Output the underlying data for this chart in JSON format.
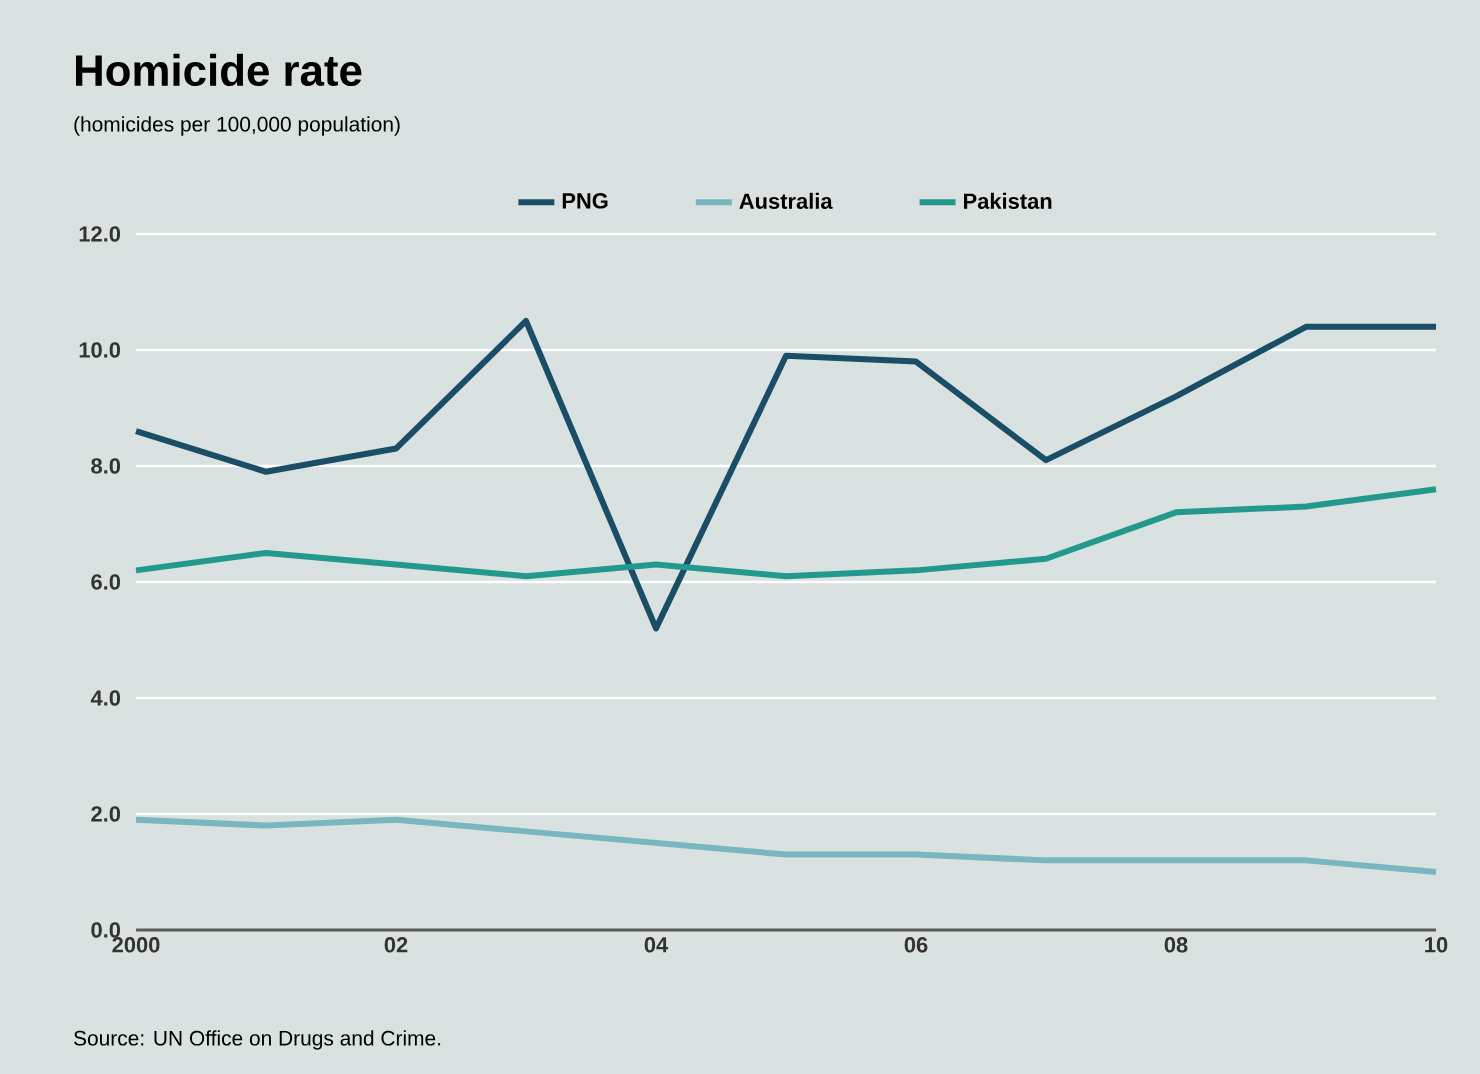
{
  "chart_data": {
    "type": "line",
    "title": "Homicide rate",
    "subtitle": "(homicides per 100,000 population)",
    "x": [
      2000,
      2001,
      2002,
      2003,
      2004,
      2005,
      2006,
      2007,
      2008,
      2009,
      2010
    ],
    "series": [
      {
        "name": "PNG",
        "color": "#1a4e66",
        "values": [
          8.6,
          7.9,
          8.3,
          10.5,
          5.2,
          9.9,
          9.8,
          8.1,
          9.2,
          10.4,
          10.4
        ]
      },
      {
        "name": "Australia",
        "color": "#79b7c0",
        "values": [
          1.9,
          1.8,
          1.9,
          1.7,
          1.5,
          1.3,
          1.3,
          1.2,
          1.2,
          1.2,
          1.0
        ]
      },
      {
        "name": "Pakistan",
        "color": "#23998e",
        "values": [
          6.2,
          6.5,
          6.3,
          6.1,
          6.3,
          6.1,
          6.2,
          6.4,
          7.2,
          7.3,
          7.6
        ]
      }
    ],
    "xlim": [
      2000,
      2010
    ],
    "xticks": [
      2000,
      {
        "value": 2002,
        "label": "02"
      },
      {
        "value": 2004,
        "label": "04"
      },
      {
        "value": 2006,
        "label": "06"
      },
      {
        "value": 2008,
        "label": "08"
      },
      {
        "value": 2010,
        "label": "10"
      }
    ],
    "ylim": [
      0,
      12
    ],
    "yticks": [
      {
        "value": 0,
        "label": "0.0"
      },
      {
        "value": 2,
        "label": "2.0"
      },
      {
        "value": 4,
        "label": "4.0"
      },
      {
        "value": 6,
        "label": "6.0"
      },
      {
        "value": 8,
        "label": "8.0"
      },
      {
        "value": 10,
        "label": "10.0"
      },
      {
        "value": 12,
        "label": "12.0"
      }
    ],
    "grid": "y",
    "legend": "top",
    "annotations": [
      "Source: UN Office on Drugs and Crime."
    ]
  }
}
